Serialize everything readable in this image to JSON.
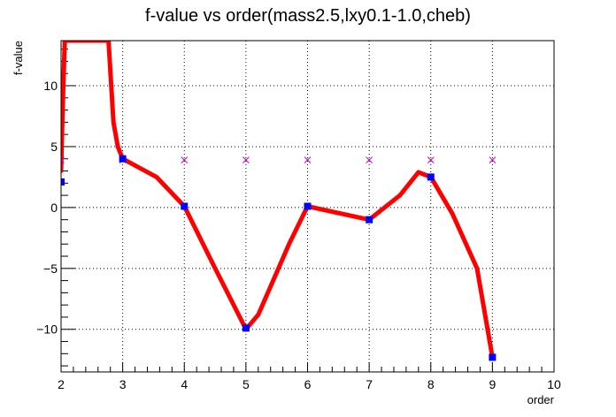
{
  "chart_data": {
    "type": "line",
    "title": "f-value vs order(mass2.5,lxy0.1-1.0,cheb)",
    "xlabel": "order",
    "ylabel": "f-value",
    "xlim": [
      2,
      10
    ],
    "ylim": [
      -13.5,
      13.7
    ],
    "grid": true,
    "x_ticks": [
      2,
      3,
      4,
      5,
      6,
      7,
      8,
      9,
      10
    ],
    "y_ticks": [
      -10,
      -5,
      0,
      5,
      10
    ],
    "x_tick_labels": [
      "2",
      "3",
      "4",
      "5",
      "6",
      "7",
      "8",
      "9",
      "10"
    ],
    "y_tick_labels": [
      "−10",
      "−5",
      "0",
      "5",
      "10"
    ],
    "series": [
      {
        "style": "curve",
        "color": "#ff0000",
        "points": [
          [
            2.0,
            3.0
          ],
          [
            2.03,
            9.0
          ],
          [
            2.06,
            13.7
          ],
          [
            2.77,
            13.7
          ],
          [
            2.85,
            7.0
          ],
          [
            2.92,
            5.0
          ],
          [
            3.0,
            4.0
          ],
          [
            3.55,
            2.5
          ],
          [
            4.0,
            0.1
          ],
          [
            4.5,
            -5.0
          ],
          [
            5.0,
            -10.0
          ],
          [
            5.2,
            -8.8
          ],
          [
            5.7,
            -3.0
          ],
          [
            6.0,
            0.1
          ],
          [
            7.0,
            -1.0
          ],
          [
            7.5,
            1.0
          ],
          [
            7.8,
            2.9
          ],
          [
            8.0,
            2.5
          ],
          [
            8.35,
            -0.5
          ],
          [
            8.75,
            -5.0
          ],
          [
            9.0,
            -12.3
          ]
        ]
      },
      {
        "style": "markers",
        "marker": "square",
        "color": "#0000ff",
        "x": [
          2,
          3,
          4,
          5,
          6,
          7,
          8,
          9
        ],
        "y": [
          2.1,
          4.0,
          0.1,
          -9.9,
          0.1,
          -1.0,
          2.5,
          -12.3
        ]
      },
      {
        "style": "markers",
        "marker": "cross",
        "color": "#cc00cc",
        "x": [
          2,
          3,
          4,
          5,
          6,
          7,
          8,
          9
        ],
        "y": [
          3.9,
          3.9,
          3.9,
          3.9,
          3.9,
          3.9,
          3.9,
          3.9
        ]
      }
    ]
  }
}
